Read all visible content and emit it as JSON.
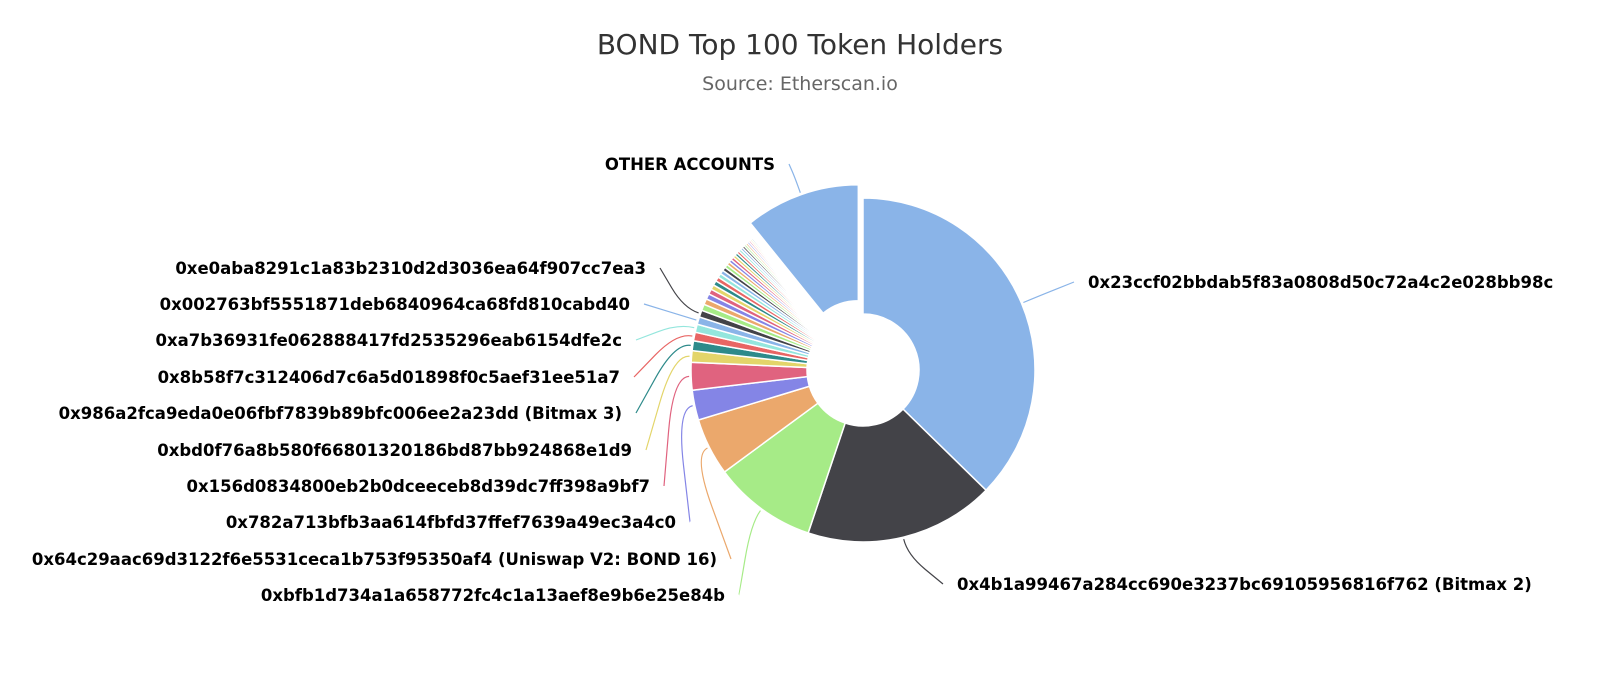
{
  "chart_data": {
    "type": "pie",
    "variant": "donut",
    "title": "BOND Top 100 Token Holders",
    "subtitle": "Source: Etherscan.io",
    "slices": [
      {
        "name": "0x23ccf02bbdab5f83a0808d50c72a4c2e028bb98c",
        "value": 34.5,
        "color": "#8ab4e8"
      },
      {
        "name": "0x4b1a99467a284cc690e3237bc69105956816f762 (Bitmax 2)",
        "value": 16.5,
        "color": "#434348"
      },
      {
        "name": "0xbfb1d734a1a658772fc4c1a13aef8e9b6e25e84b",
        "value": 9.0,
        "color": "#a6eb87"
      },
      {
        "name": "0x64c29aac69d3122f6e5531ceca1b753f95350af4 (Uniswap V2: BOND 16)",
        "value": 5.0,
        "color": "#eba86c"
      },
      {
        "name": "0x782a713bfb3aa614fbfd37ffef7639a49ec3a4c0",
        "value": 2.6,
        "color": "#8485e6"
      },
      {
        "name": "0x156d0834800eb2b0dceeceb8d39dc7ff398a9bf7",
        "value": 2.4,
        "color": "#e0637f"
      },
      {
        "name": "0xbd0f76a8b580f66801320186bd87bb924868e1d9",
        "value": 1.0,
        "color": "#e3d56a"
      },
      {
        "name": "0x986a2fca9eda0e06fbf7839b89bfc006ee2a23dd (Bitmax 3)",
        "value": 0.85,
        "color": "#2d8a8a"
      },
      {
        "name": "0x8b58f7c312406d7c6a5d01898f0c5aef31ee51a7",
        "value": 0.75,
        "color": "#e86564"
      },
      {
        "name": "0xa7b36931fe062888417fd2535296eab6154dfe2c",
        "value": 0.7,
        "color": "#94e6dd"
      },
      {
        "name": "0x002763bf5551871deb6840964ca68fd810cabd40",
        "value": 0.65,
        "color": "#8ab4e8"
      },
      {
        "name": "0xe0aba8291c1a83b2310d2d3036ea64f907cc7ea3",
        "value": 0.6,
        "color": "#434348"
      },
      {
        "name": "",
        "value": 0.55,
        "color": "#a6eb87"
      },
      {
        "name": "",
        "value": 0.5,
        "color": "#eba86c"
      },
      {
        "name": "",
        "value": 0.48,
        "color": "#8485e6"
      },
      {
        "name": "",
        "value": 0.45,
        "color": "#e0637f"
      },
      {
        "name": "",
        "value": 0.42,
        "color": "#e3d56a"
      },
      {
        "name": "",
        "value": 0.4,
        "color": "#2d8a8a"
      },
      {
        "name": "",
        "value": 0.38,
        "color": "#e86564"
      },
      {
        "name": "",
        "value": 0.36,
        "color": "#94e6dd"
      },
      {
        "name": "",
        "value": 0.34,
        "color": "#8ab4e8"
      },
      {
        "name": "",
        "value": 0.32,
        "color": "#434348"
      },
      {
        "name": "",
        "value": 0.3,
        "color": "#a6eb87"
      },
      {
        "name": "",
        "value": 0.28,
        "color": "#eba86c"
      },
      {
        "name": "",
        "value": 0.27,
        "color": "#8485e6"
      },
      {
        "name": "",
        "value": 0.26,
        "color": "#e0637f"
      },
      {
        "name": "",
        "value": 0.25,
        "color": "#e3d56a"
      },
      {
        "name": "",
        "value": 0.24,
        "color": "#2d8a8a"
      },
      {
        "name": "",
        "value": 0.23,
        "color": "#e86564"
      },
      {
        "name": "",
        "value": 0.22,
        "color": "#94e6dd"
      },
      {
        "name": "",
        "value": 0.21,
        "color": "#8ab4e8"
      },
      {
        "name": "",
        "value": 0.2,
        "color": "#434348"
      },
      {
        "name": "",
        "value": 0.19,
        "color": "#a6eb87"
      },
      {
        "name": "",
        "value": 0.18,
        "color": "#eba86c"
      },
      {
        "name": "",
        "value": 0.17,
        "color": "#8485e6"
      },
      {
        "name": "",
        "value": 0.16,
        "color": "#e0637f"
      },
      {
        "name": "",
        "value": 0.15,
        "color": "#e3d56a"
      },
      {
        "name": "",
        "value": 0.14,
        "color": "#2d8a8a"
      },
      {
        "name": "",
        "value": 0.13,
        "color": "#e86564"
      },
      {
        "name": "",
        "value": 0.12,
        "color": "#94e6dd"
      },
      {
        "name": "OTHER ACCOUNTS",
        "value": 10.0,
        "color": "#8ab4e8",
        "sliced": true
      }
    ]
  }
}
